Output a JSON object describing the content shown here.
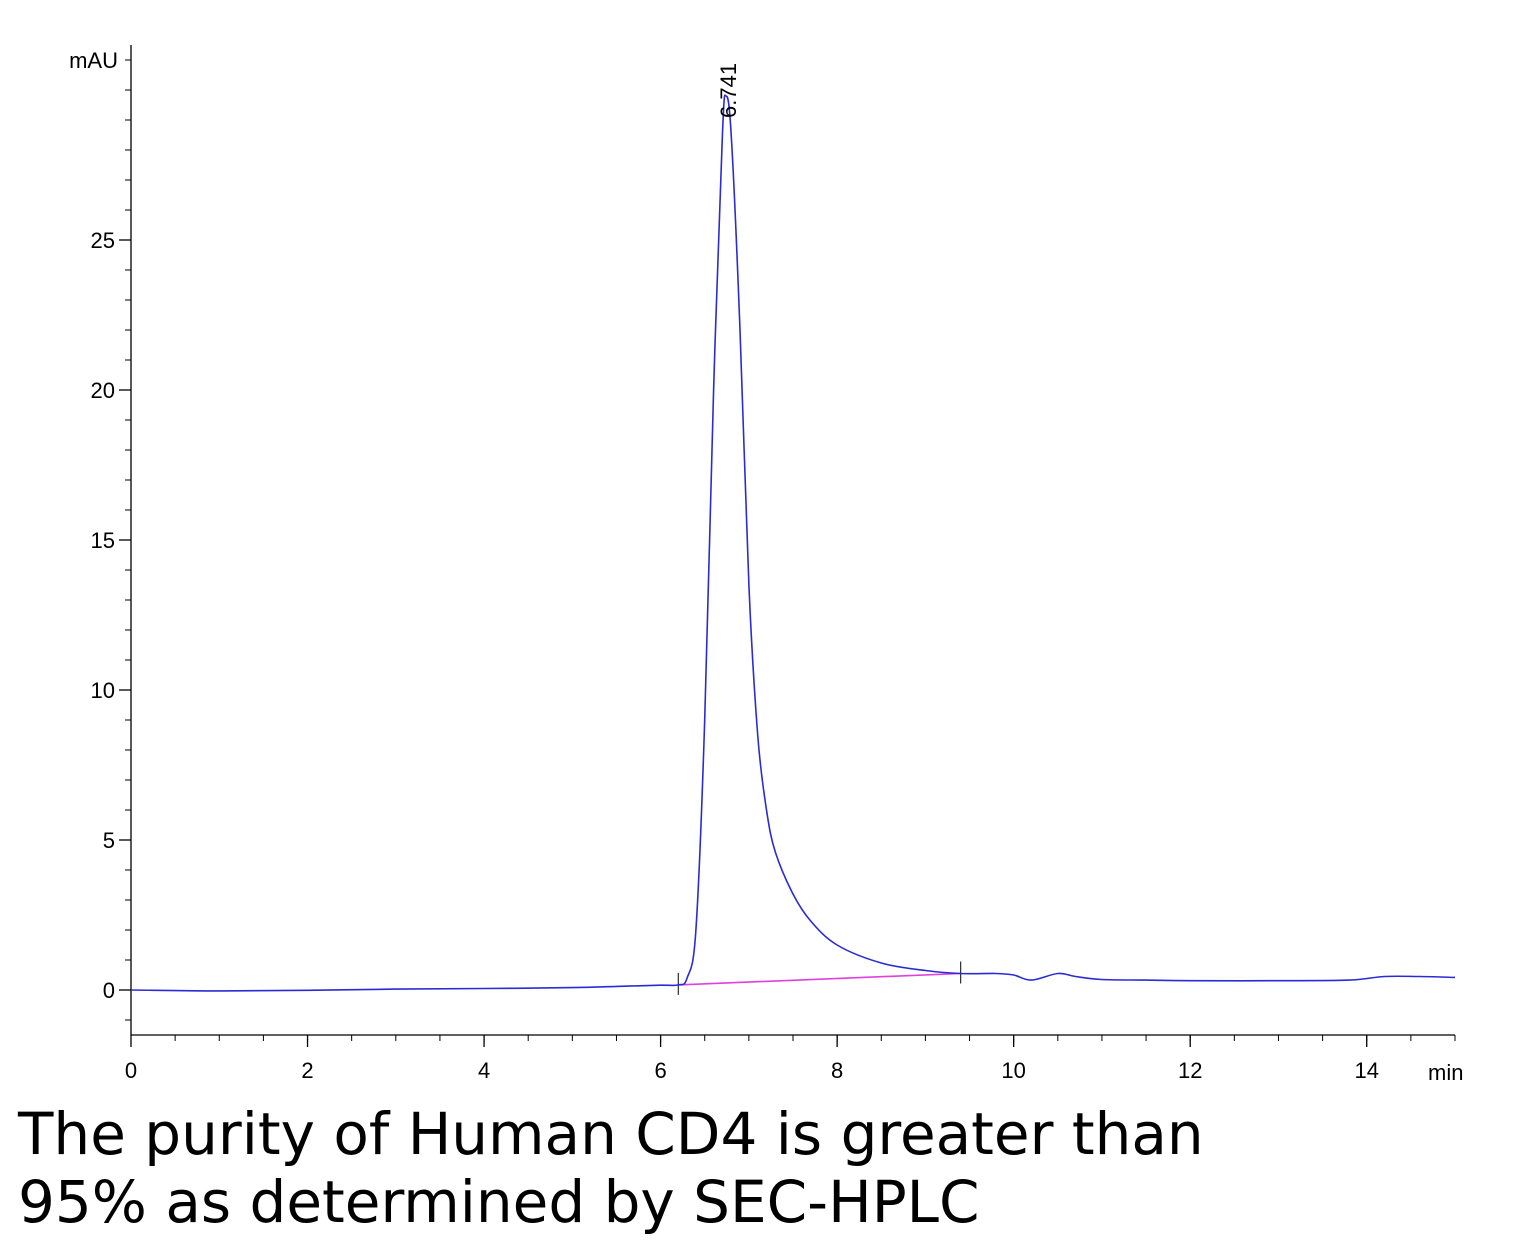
{
  "chart_data": {
    "type": "line",
    "ylabel": "mAU",
    "xlabel": "min",
    "xlim": [
      0,
      15
    ],
    "ylim": [
      -1.5,
      31.5
    ],
    "x_ticks": [
      0,
      2,
      4,
      6,
      8,
      10,
      12,
      14
    ],
    "y_ticks": [
      0,
      5,
      10,
      15,
      20,
      25
    ],
    "peak_label": "6.741",
    "peak": {
      "x": 6.741,
      "y": 29.8
    },
    "series": [
      {
        "color": "#2b2bd6",
        "points": [
          [
            0,
            0.0
          ],
          [
            1,
            -0.03
          ],
          [
            2,
            -0.01
          ],
          [
            3,
            0.03
          ],
          [
            4,
            0.05
          ],
          [
            5,
            0.08
          ],
          [
            5.5,
            0.12
          ],
          [
            6.0,
            0.16
          ],
          [
            6.2,
            0.17
          ],
          [
            6.3,
            0.4
          ],
          [
            6.4,
            2.0
          ],
          [
            6.5,
            9.0
          ],
          [
            6.6,
            20.0
          ],
          [
            6.7,
            28.5
          ],
          [
            6.741,
            29.8
          ],
          [
            6.8,
            28.5
          ],
          [
            6.9,
            22.0
          ],
          [
            7.0,
            13.5
          ],
          [
            7.1,
            8.5
          ],
          [
            7.2,
            6.0
          ],
          [
            7.3,
            4.6
          ],
          [
            7.5,
            3.2
          ],
          [
            7.7,
            2.3
          ],
          [
            8.0,
            1.5
          ],
          [
            8.5,
            0.9
          ],
          [
            9.0,
            0.65
          ],
          [
            9.4,
            0.55
          ],
          [
            9.8,
            0.55
          ],
          [
            10.0,
            0.5
          ],
          [
            10.2,
            0.33
          ],
          [
            10.5,
            0.55
          ],
          [
            10.7,
            0.45
          ],
          [
            11.0,
            0.35
          ],
          [
            11.5,
            0.33
          ],
          [
            12.0,
            0.31
          ],
          [
            13.0,
            0.31
          ],
          [
            13.8,
            0.33
          ],
          [
            14.2,
            0.45
          ],
          [
            14.6,
            0.45
          ],
          [
            15.0,
            0.42
          ]
        ]
      }
    ],
    "baseline": {
      "color": "#e040e0",
      "points": [
        [
          6.2,
          0.17
        ],
        [
          9.4,
          0.55
        ]
      ]
    },
    "integration_marks": [
      6.2,
      9.4
    ]
  },
  "caption": {
    "line1": "The purity of Human CD4 is greater than",
    "line2": "95% as determined by SEC-HPLC"
  }
}
